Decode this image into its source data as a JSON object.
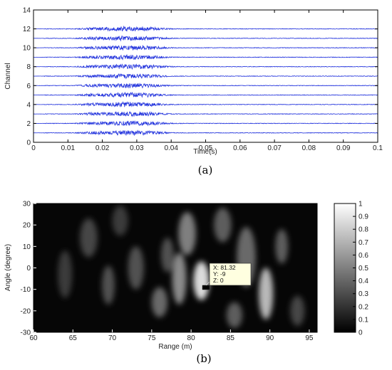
{
  "chart_data": [
    {
      "type": "line",
      "panel_label": "(a)",
      "xlabel": "Time(s)",
      "ylabel": "Channel",
      "xlim": [
        0,
        0.1
      ],
      "ylim": [
        0,
        14
      ],
      "x_ticks": [
        "0",
        "0.01",
        "0.02",
        "0.03",
        "0.04",
        "0.05",
        "0.06",
        "0.07",
        "0.08",
        "0.09",
        "0.1"
      ],
      "y_ticks": [
        "0",
        "2",
        "4",
        "6",
        "8",
        "10",
        "12",
        "14"
      ],
      "series_color": "#2233dd",
      "channels": [
        1,
        2,
        3,
        4,
        5,
        6,
        7,
        8,
        9,
        10,
        11,
        12
      ],
      "signal_onset_s": 0.003,
      "burst_center_s": 0.027,
      "burst_range_s": [
        0.012,
        0.045
      ],
      "grid": false
    },
    {
      "type": "heatmap",
      "panel_label": "(b)",
      "xlabel": "Range (m)",
      "ylabel": "Angle (degree)",
      "xlim": [
        60,
        96
      ],
      "ylim": [
        -30,
        30
      ],
      "x_ticks": [
        "60",
        "65",
        "70",
        "75",
        "80",
        "85",
        "90",
        "95"
      ],
      "y_ticks": [
        "-30",
        "-20",
        "-10",
        "0",
        "10",
        "20",
        "30"
      ],
      "colormap": "gray",
      "clim": [
        0,
        1
      ],
      "colorbar_ticks": [
        "0",
        "0.1",
        "0.2",
        "0.3",
        "0.4",
        "0.5",
        "0.6",
        "0.7",
        "0.8",
        "0.9",
        "1"
      ],
      "datatip": {
        "x": 81.32,
        "y": -9,
        "z": 0,
        "lines": [
          "X: 81.32",
          "Y: -9",
          "Z: 0"
        ]
      },
      "blobs": [
        {
          "x": 81.3,
          "y": -6,
          "sx": 1.0,
          "sy": 9,
          "a": 0.95
        },
        {
          "x": 78.5,
          "y": -5,
          "sx": 0.9,
          "sy": 12,
          "a": 0.6
        },
        {
          "x": 79.5,
          "y": 16,
          "sx": 1.1,
          "sy": 10,
          "a": 0.55
        },
        {
          "x": 76.0,
          "y": -16,
          "sx": 1.0,
          "sy": 7,
          "a": 0.45
        },
        {
          "x": 89.5,
          "y": -12,
          "sx": 0.9,
          "sy": 12,
          "a": 0.8
        },
        {
          "x": 87.0,
          "y": 5,
          "sx": 1.2,
          "sy": 14,
          "a": 0.45
        },
        {
          "x": 91.5,
          "y": 10,
          "sx": 0.8,
          "sy": 8,
          "a": 0.4
        },
        {
          "x": 84.0,
          "y": 20,
          "sx": 1.1,
          "sy": 8,
          "a": 0.4
        },
        {
          "x": 73.0,
          "y": 0,
          "sx": 1.0,
          "sy": 10,
          "a": 0.35
        },
        {
          "x": 69.5,
          "y": -8,
          "sx": 0.8,
          "sy": 9,
          "a": 0.35
        },
        {
          "x": 67.0,
          "y": 14,
          "sx": 1.1,
          "sy": 9,
          "a": 0.3
        },
        {
          "x": 64.0,
          "y": -3,
          "sx": 0.9,
          "sy": 11,
          "a": 0.25
        },
        {
          "x": 85.5,
          "y": -22,
          "sx": 1.0,
          "sy": 6,
          "a": 0.4
        },
        {
          "x": 93.5,
          "y": -20,
          "sx": 0.9,
          "sy": 7,
          "a": 0.3
        },
        {
          "x": 71.0,
          "y": 22,
          "sx": 1.0,
          "sy": 7,
          "a": 0.25
        },
        {
          "x": 77.0,
          "y": 6,
          "sx": 0.8,
          "sy": 8,
          "a": 0.35
        }
      ]
    }
  ]
}
